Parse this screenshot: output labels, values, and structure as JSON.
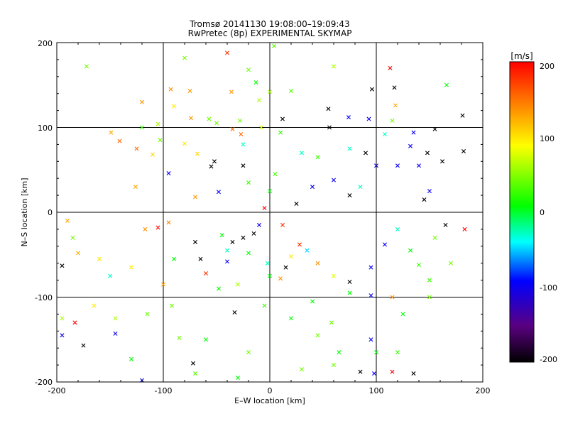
{
  "chart_data": {
    "type": "scatter",
    "title": "Tromsø 20141130 19:08:00–19:09:43",
    "subtitle": "RwPretec (8p) EXPERIMENTAL SKYMAP",
    "xlabel": "E–W location [km]",
    "ylabel": "N–S location [km]",
    "xlim": [
      -200,
      200
    ],
    "ylim": [
      -200,
      200
    ],
    "xticks": [
      "-200",
      "-100",
      "0",
      "100",
      "200"
    ],
    "yticks": [
      "-200",
      "-100",
      "0",
      "100",
      "200"
    ],
    "grid": true,
    "colorbar": {
      "label": "[m/s]",
      "min": -200,
      "max": 200,
      "ticks": [
        "200",
        "100",
        "0",
        "-100",
        "-200"
      ],
      "colormap": "rainbow",
      "stops": [
        "#000000",
        "#5a0080",
        "#0000ff",
        "#00ffff",
        "#00ff00",
        "#ffff00",
        "#ff8000",
        "#ff0000"
      ]
    },
    "points": [
      [
        4,
        196,
        30,
        "x"
      ],
      [
        -40,
        188,
        180,
        "x"
      ],
      [
        -80,
        182,
        40,
        "x"
      ],
      [
        -172,
        172,
        40,
        "x"
      ],
      [
        113,
        170,
        200,
        "x"
      ],
      [
        60,
        172,
        60,
        "x"
      ],
      [
        -20,
        168,
        40,
        "x"
      ],
      [
        166,
        150,
        0,
        "x"
      ],
      [
        -93,
        145,
        140,
        "x"
      ],
      [
        -75,
        143,
        140,
        "x"
      ],
      [
        -36,
        142,
        140,
        "x"
      ],
      [
        -13,
        153,
        0,
        "x"
      ],
      [
        20,
        143,
        30,
        "x"
      ],
      [
        0,
        142,
        60,
        "x"
      ],
      [
        -10,
        132,
        60,
        "x"
      ],
      [
        96,
        145,
        -200,
        "x"
      ],
      [
        117,
        147,
        -200,
        "x"
      ],
      [
        118,
        126,
        130,
        "x"
      ],
      [
        -120,
        130,
        140,
        "x"
      ],
      [
        -90,
        125,
        100,
        "x"
      ],
      [
        181,
        114,
        -200,
        "x"
      ],
      [
        55,
        122,
        -200,
        "x"
      ],
      [
        -74,
        111,
        140,
        "x"
      ],
      [
        -57,
        110,
        40,
        "x"
      ],
      [
        -50,
        105,
        40,
        "x"
      ],
      [
        -28,
        108,
        40,
        "x"
      ],
      [
        12,
        110,
        -200,
        "x"
      ],
      [
        -105,
        104,
        60,
        "x"
      ],
      [
        -120,
        100,
        20,
        "x"
      ],
      [
        74,
        112,
        -100,
        "x"
      ],
      [
        93,
        110,
        -100,
        "x"
      ],
      [
        115,
        108,
        40,
        "x"
      ],
      [
        -149,
        94,
        130,
        "x"
      ],
      [
        -141,
        84,
        160,
        "x"
      ],
      [
        -103,
        85,
        40,
        "x"
      ],
      [
        -80,
        81,
        100,
        "x"
      ],
      [
        -35,
        98,
        160,
        "x"
      ],
      [
        -27,
        92,
        160,
        "x"
      ],
      [
        -8,
        100,
        70,
        "x"
      ],
      [
        10,
        94,
        20,
        "x"
      ],
      [
        56,
        100,
        -200,
        "x"
      ],
      [
        108,
        92,
        -30,
        "x"
      ],
      [
        135,
        94,
        -100,
        "x"
      ],
      [
        155,
        98,
        -200,
        "x"
      ],
      [
        -125,
        75,
        160,
        "x"
      ],
      [
        -110,
        68,
        110,
        "x"
      ],
      [
        -68,
        69,
        110,
        "x"
      ],
      [
        -55,
        54,
        -200,
        "x"
      ],
      [
        -95,
        46,
        -100,
        "x"
      ],
      [
        -52,
        60,
        -200,
        "x"
      ],
      [
        -25,
        55,
        -200,
        "x"
      ],
      [
        75,
        75,
        -30,
        "x"
      ],
      [
        90,
        70,
        -200,
        "x"
      ],
      [
        132,
        78,
        -100,
        "x"
      ],
      [
        148,
        70,
        -200,
        "x"
      ],
      [
        162,
        60,
        -200,
        "x"
      ],
      [
        182,
        72,
        -200,
        "x"
      ],
      [
        100,
        55,
        -100,
        "x"
      ],
      [
        120,
        55,
        -100,
        "x"
      ],
      [
        140,
        55,
        -100,
        "x"
      ],
      [
        -126,
        30,
        130,
        "x"
      ],
      [
        -48,
        24,
        -100,
        "x"
      ],
      [
        -70,
        18,
        140,
        "x"
      ],
      [
        5,
        45,
        20,
        "x"
      ],
      [
        -20,
        35,
        20,
        "x"
      ],
      [
        40,
        30,
        -100,
        "x"
      ],
      [
        60,
        38,
        -100,
        "x"
      ],
      [
        75,
        20,
        -200,
        "x"
      ],
      [
        85,
        30,
        -30,
        "x"
      ],
      [
        150,
        25,
        -100,
        "x"
      ],
      [
        145,
        15,
        -200,
        "x"
      ],
      [
        -190,
        -10,
        130,
        "x"
      ],
      [
        -95,
        -12,
        150,
        "x"
      ],
      [
        -70,
        -35,
        -200,
        "x"
      ],
      [
        -45,
        -27,
        0,
        "x"
      ],
      [
        -35,
        -35,
        -200,
        "x"
      ],
      [
        -25,
        -30,
        -200,
        "x"
      ],
      [
        -15,
        -25,
        -200,
        "x"
      ],
      [
        -40,
        -45,
        -30,
        "x"
      ],
      [
        -20,
        -48,
        0,
        "x"
      ],
      [
        -185,
        -30,
        40,
        "x"
      ],
      [
        -180,
        -48,
        130,
        "x"
      ],
      [
        -160,
        -55,
        100,
        "x"
      ],
      [
        -195,
        -63,
        -200,
        "x"
      ],
      [
        -130,
        -65,
        100,
        "x"
      ],
      [
        -150,
        -75,
        -30,
        "x"
      ],
      [
        -100,
        -85,
        130,
        "x"
      ],
      [
        -90,
        -55,
        0,
        "x"
      ],
      [
        -65,
        -55,
        -200,
        "x"
      ],
      [
        -40,
        -58,
        -100,
        "x"
      ],
      [
        -60,
        -72,
        180,
        "x"
      ],
      [
        -48,
        -90,
        0,
        "x"
      ],
      [
        -30,
        -85,
        60,
        "x"
      ],
      [
        0,
        -75,
        0,
        "x"
      ],
      [
        15,
        -65,
        -200,
        "x"
      ],
      [
        28,
        -38,
        180,
        "x"
      ],
      [
        35,
        -45,
        -50,
        "x"
      ],
      [
        20,
        -52,
        100,
        "x"
      ],
      [
        45,
        -60,
        140,
        "x"
      ],
      [
        60,
        -75,
        80,
        "x"
      ],
      [
        75,
        -82,
        -200,
        "x"
      ],
      [
        95,
        -65,
        -100,
        "x"
      ],
      [
        108,
        -38,
        -100,
        "x"
      ],
      [
        132,
        -45,
        0,
        "x"
      ],
      [
        140,
        -62,
        20,
        "x"
      ],
      [
        150,
        -80,
        20,
        "x"
      ],
      [
        170,
        -60,
        40,
        "x"
      ],
      [
        165,
        -15,
        -200,
        "x"
      ],
      [
        183,
        -20,
        200,
        "x"
      ],
      [
        -165,
        -110,
        100,
        "x"
      ],
      [
        -195,
        -125,
        60,
        "x"
      ],
      [
        -183,
        -130,
        200,
        "x"
      ],
      [
        -145,
        -125,
        60,
        "x"
      ],
      [
        -115,
        -120,
        40,
        "x"
      ],
      [
        -92,
        -110,
        40,
        "x"
      ],
      [
        -33,
        -118,
        -200,
        "x"
      ],
      [
        -5,
        -110,
        20,
        "x"
      ],
      [
        20,
        -125,
        0,
        "x"
      ],
      [
        40,
        -105,
        0,
        "x"
      ],
      [
        58,
        -130,
        40,
        "x"
      ],
      [
        75,
        -95,
        0,
        "x"
      ],
      [
        95,
        -98,
        -100,
        "x"
      ],
      [
        115,
        -100,
        140,
        "x"
      ],
      [
        125,
        -120,
        0,
        "x"
      ],
      [
        150,
        -100,
        40,
        "x"
      ],
      [
        -195,
        -145,
        -100,
        "x"
      ],
      [
        -145,
        -143,
        -100,
        "x"
      ],
      [
        -175,
        -157,
        -200,
        "x"
      ],
      [
        -60,
        -150,
        0,
        "x"
      ],
      [
        -85,
        -148,
        40,
        "x"
      ],
      [
        -20,
        -165,
        40,
        "x"
      ],
      [
        45,
        -145,
        40,
        "x"
      ],
      [
        65,
        -165,
        0,
        "x"
      ],
      [
        95,
        -150,
        -100,
        "x"
      ],
      [
        120,
        -165,
        20,
        "x"
      ],
      [
        -72,
        -178,
        -200,
        "x"
      ],
      [
        -130,
        -173,
        0,
        "x"
      ],
      [
        -120,
        -198,
        -100,
        "x"
      ],
      [
        -70,
        -190,
        30,
        "x"
      ],
      [
        -30,
        -195,
        0,
        "x"
      ],
      [
        30,
        -185,
        40,
        "x"
      ],
      [
        60,
        -180,
        40,
        "x"
      ],
      [
        85,
        -188,
        -200,
        "x"
      ],
      [
        98,
        -190,
        -100,
        "x"
      ],
      [
        115,
        -188,
        200,
        "x"
      ],
      [
        135,
        -190,
        -200,
        "x"
      ],
      [
        100,
        -165,
        0,
        "x"
      ],
      [
        10,
        -78,
        140,
        "x"
      ],
      [
        -25,
        80,
        -30,
        "x"
      ],
      [
        30,
        70,
        -30,
        "x"
      ],
      [
        45,
        65,
        20,
        "x"
      ],
      [
        0,
        25,
        0,
        "x"
      ],
      [
        -5,
        5,
        200,
        "x"
      ],
      [
        12,
        -15,
        180,
        "x"
      ],
      [
        25,
        10,
        -200,
        "x"
      ],
      [
        -10,
        -15,
        -100,
        "x"
      ],
      [
        -2,
        -60,
        -30,
        "x"
      ],
      [
        120,
        -20,
        -30,
        "x"
      ],
      [
        155,
        -30,
        40,
        "x"
      ],
      [
        -105,
        -18,
        200,
        "x"
      ],
      [
        -117,
        -20,
        140,
        "x"
      ]
    ]
  }
}
